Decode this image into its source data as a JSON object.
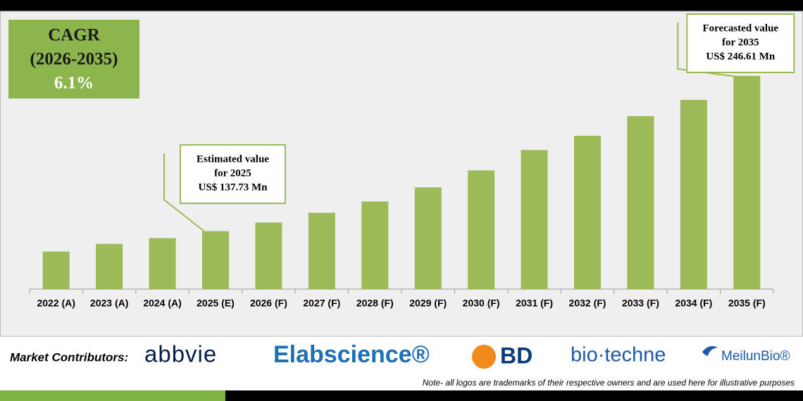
{
  "chart_data": {
    "type": "bar",
    "categories": [
      "2022 (A)",
      "2023 (A)",
      "2024 (A)",
      "2025 (E)",
      "2026 (F)",
      "2027 (F)",
      "2028 (F)",
      "2029 (F)",
      "2030 (F)",
      "2031 (F)",
      "2032 (F)",
      "2033 (F)",
      "2034 (F)",
      "2035 (F)"
    ],
    "values": [
      123.4,
      128.8,
      132.8,
      137.73,
      143.7,
      150.6,
      158.5,
      168.4,
      180.3,
      194.6,
      204.6,
      218.4,
      229.8,
      246.61
    ],
    "value_labels": [
      null,
      null,
      null,
      "US$ 137.73 Mn",
      null,
      null,
      null,
      null,
      null,
      null,
      null,
      null,
      null,
      "US$ 246.61 Mn"
    ],
    "annotations": [
      [
        "Estimated value",
        "for 2025"
      ],
      [
        "Forecasted value",
        "for 2035"
      ]
    ],
    "color": "#9bbb59",
    "ylim": [
      97,
      290
    ]
  },
  "cagr": {
    "label": "CAGR",
    "period": "(2026-2035)",
    "value": "6.1%"
  },
  "footer": {
    "title": "Market Contributors:",
    "logos": [
      "abbvie",
      "Elabscience®",
      "BD",
      "bio·techne",
      "MeilunBio®"
    ],
    "note": "Note- all logos are trademarks of their respective owners and are used here for illustrative purposes"
  }
}
